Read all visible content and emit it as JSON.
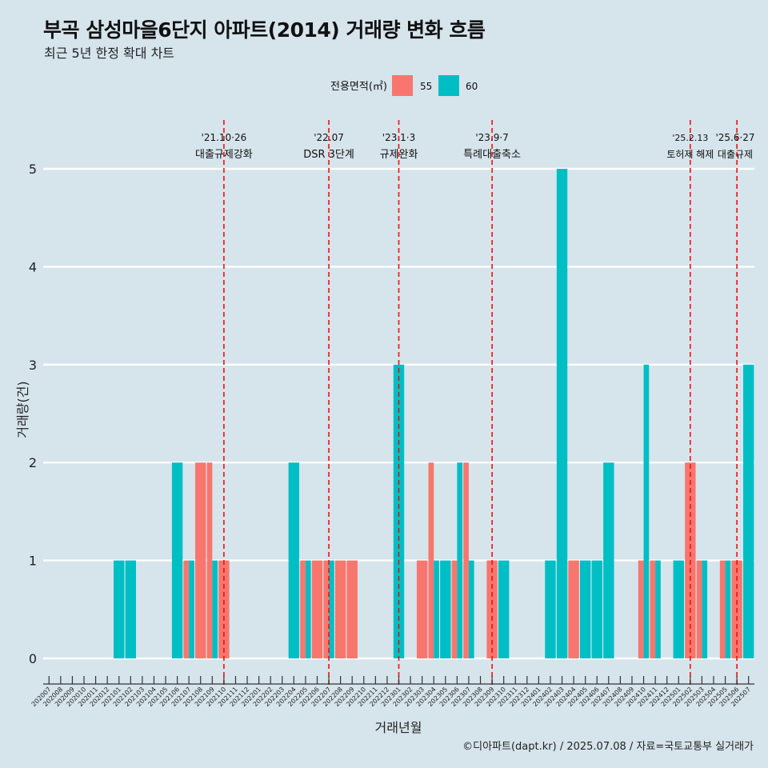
{
  "chart_data": {
    "type": "bar",
    "title": "부곡 삼성마을6단지 아파트(2014) 거래량 변화 흐름",
    "subtitle": "최근 5년 한정 확대 차트",
    "xlabel": "거래년월",
    "ylabel": "거래량(건)",
    "ylim": [
      0,
      5
    ],
    "yticks": [
      0,
      1,
      2,
      3,
      4,
      5
    ],
    "legend": {
      "title": "전용면적(㎡)",
      "position": "top"
    },
    "categories": [
      "202007",
      "202008",
      "202009",
      "202010",
      "202011",
      "202012",
      "202101",
      "202102",
      "202103",
      "202104",
      "202105",
      "202106",
      "202107",
      "202108",
      "202109",
      "202110",
      "202111",
      "202112",
      "202201",
      "202202",
      "202203",
      "202204",
      "202205",
      "202206",
      "202207",
      "202208",
      "202209",
      "202210",
      "202211",
      "202212",
      "202301",
      "202302",
      "202303",
      "202304",
      "202305",
      "202306",
      "202307",
      "202308",
      "202309",
      "202310",
      "202311",
      "202312",
      "202401",
      "202402",
      "202403",
      "202404",
      "202405",
      "202406",
      "202407",
      "202408",
      "202409",
      "202410",
      "202411",
      "202412",
      "202501",
      "202502",
      "202503",
      "202504",
      "202505",
      "202506",
      "202507"
    ],
    "series": [
      {
        "name": "55",
        "color": "#f8766d",
        "values": [
          0,
          0,
          0,
          0,
          0,
          0,
          0,
          0,
          0,
          0,
          0,
          0,
          1,
          2,
          2,
          1,
          0,
          0,
          0,
          0,
          0,
          0,
          1,
          1,
          1,
          1,
          1,
          0,
          0,
          0,
          0,
          0,
          1,
          2,
          0,
          1,
          2,
          0,
          1,
          0,
          0,
          0,
          0,
          0,
          0,
          1,
          0,
          0,
          0,
          0,
          0,
          1,
          1,
          0,
          0,
          2,
          1,
          0,
          1,
          1,
          0
        ]
      },
      {
        "name": "60",
        "color": "#00bfc4",
        "values": [
          0,
          0,
          0,
          0,
          0,
          0,
          1,
          1,
          0,
          0,
          0,
          2,
          1,
          0,
          1,
          0,
          0,
          0,
          0,
          0,
          0,
          2,
          1,
          0,
          1,
          0,
          0,
          0,
          0,
          0,
          3,
          0,
          0,
          1,
          1,
          2,
          1,
          0,
          0,
          1,
          0,
          0,
          0,
          1,
          5,
          0,
          1,
          1,
          2,
          0,
          0,
          3,
          1,
          0,
          1,
          0,
          1,
          0,
          1,
          0,
          3
        ]
      }
    ],
    "annotations": [
      {
        "month": "202110",
        "date": "'21.10·26",
        "label": "대출규제강화"
      },
      {
        "month": "202207",
        "date": "'22.07",
        "label": "DSR 3단계"
      },
      {
        "month": "202301",
        "date": "'23.1·3",
        "label": "규제완화"
      },
      {
        "month": "202309",
        "date": "'23.9·7",
        "label": "특례대출축소"
      },
      {
        "month": "202502",
        "date": "'25.2.13",
        "label": "토허제 해제"
      },
      {
        "month": "202506",
        "date": "'25.6·27",
        "label": "대출규제"
      }
    ]
  },
  "caption": "©디아파트(dapt.kr) / 2025.07.08 / 자료=국토교통부 실거래가"
}
